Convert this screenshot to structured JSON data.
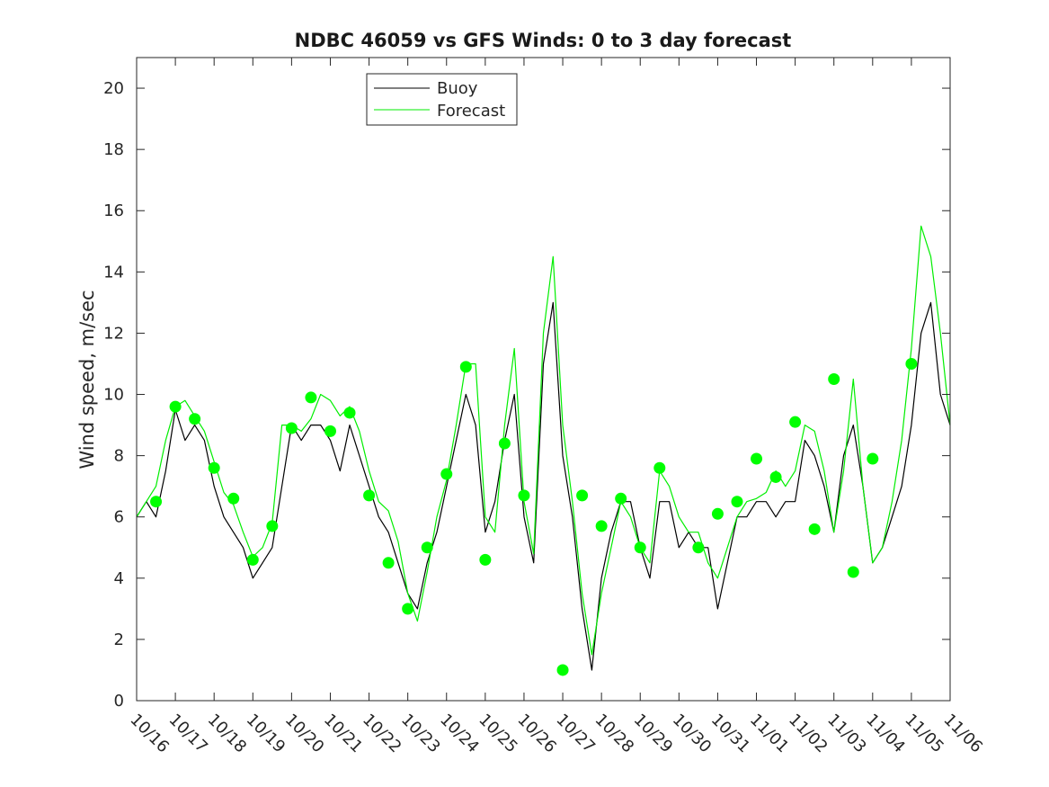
{
  "chart_data": {
    "type": "line",
    "title": "NDBC 46059 vs GFS Winds: 0 to 3 day forecast",
    "xlabel": "",
    "ylabel": "Wind speed, m/sec",
    "ylim": [
      0,
      21
    ],
    "yticks": [
      0,
      2,
      4,
      6,
      8,
      10,
      12,
      14,
      16,
      18,
      20
    ],
    "xlim": [
      0,
      21
    ],
    "x_tick_labels": [
      "10/16",
      "10/17",
      "10/18",
      "10/19",
      "10/20",
      "10/21",
      "10/22",
      "10/23",
      "10/24",
      "10/25",
      "10/26",
      "10/27",
      "10/28",
      "10/29",
      "10/30",
      "10/31",
      "11/01",
      "11/02",
      "11/03",
      "11/04",
      "11/05",
      "11/06"
    ],
    "legend": {
      "position": "top",
      "entries": [
        "Buoy",
        "Forecast"
      ]
    },
    "colors": {
      "buoy": "#000000",
      "forecast": "#00ee00",
      "marker": "#00ff00"
    },
    "series": [
      {
        "name": "Buoy",
        "values": [
          [
            0.0,
            6
          ],
          [
            0.25,
            6.5
          ],
          [
            0.5,
            6
          ],
          [
            0.75,
            7.5
          ],
          [
            1.0,
            9.5
          ],
          [
            1.25,
            8.5
          ],
          [
            1.5,
            9
          ],
          [
            1.75,
            8.5
          ],
          [
            2.0,
            7
          ],
          [
            2.25,
            6
          ],
          [
            2.5,
            5.5
          ],
          [
            2.75,
            5
          ],
          [
            3.0,
            4
          ],
          [
            3.25,
            4.5
          ],
          [
            3.5,
            5
          ],
          [
            3.75,
            7
          ],
          [
            4.0,
            9
          ],
          [
            4.25,
            8.5
          ],
          [
            4.5,
            9
          ],
          [
            4.75,
            9
          ],
          [
            5.0,
            8.5
          ],
          [
            5.25,
            7.5
          ],
          [
            5.5,
            9
          ],
          [
            5.75,
            8
          ],
          [
            6.0,
            7
          ],
          [
            6.25,
            6
          ],
          [
            6.5,
            5.5
          ],
          [
            6.75,
            4.5
          ],
          [
            7.0,
            3.5
          ],
          [
            7.25,
            3
          ],
          [
            7.5,
            4.5
          ],
          [
            7.75,
            5.5
          ],
          [
            8.0,
            7
          ],
          [
            8.25,
            8.5
          ],
          [
            8.5,
            10
          ],
          [
            8.75,
            9
          ],
          [
            9.0,
            5.5
          ],
          [
            9.25,
            6.5
          ],
          [
            9.5,
            8.5
          ],
          [
            9.75,
            10
          ],
          [
            10.0,
            6
          ],
          [
            10.25,
            4.5
          ],
          [
            10.5,
            11
          ],
          [
            10.75,
            13
          ],
          [
            11.0,
            8
          ],
          [
            11.25,
            6
          ],
          [
            11.5,
            3
          ],
          [
            11.75,
            1
          ],
          [
            12.0,
            4
          ],
          [
            12.25,
            5.5
          ],
          [
            12.5,
            6.5
          ],
          [
            12.75,
            6.5
          ],
          [
            13.0,
            5
          ],
          [
            13.25,
            4
          ],
          [
            13.5,
            6.5
          ],
          [
            13.75,
            6.5
          ],
          [
            14.0,
            5
          ],
          [
            14.25,
            5.5
          ],
          [
            14.5,
            5
          ],
          [
            14.75,
            5
          ],
          [
            15.0,
            3
          ],
          [
            15.25,
            4.5
          ],
          [
            15.5,
            6
          ],
          [
            15.75,
            6
          ],
          [
            16.0,
            6.5
          ],
          [
            16.25,
            6.5
          ],
          [
            16.5,
            6
          ],
          [
            16.75,
            6.5
          ],
          [
            17.0,
            6.5
          ],
          [
            17.25,
            8.5
          ],
          [
            17.5,
            8
          ],
          [
            17.75,
            7
          ],
          [
            18.0,
            5.5
          ],
          [
            18.25,
            8
          ],
          [
            18.5,
            9
          ],
          [
            18.75,
            7
          ],
          [
            19.0,
            4.5
          ],
          [
            19.25,
            5
          ],
          [
            19.5,
            6
          ],
          [
            19.75,
            7
          ],
          [
            20.0,
            9
          ],
          [
            20.25,
            12
          ],
          [
            20.5,
            13
          ],
          [
            20.75,
            10
          ],
          [
            21.0,
            9
          ]
        ]
      },
      {
        "name": "Forecast",
        "values": [
          [
            0.0,
            6
          ],
          [
            0.25,
            6.5
          ],
          [
            0.5,
            7
          ],
          [
            0.75,
            8.5
          ],
          [
            1.0,
            9.6
          ],
          [
            1.25,
            9.8
          ],
          [
            1.5,
            9.3
          ],
          [
            1.75,
            8.8
          ],
          [
            2.0,
            7.8
          ],
          [
            2.25,
            6.8
          ],
          [
            2.5,
            6.4
          ],
          [
            2.75,
            5.5
          ],
          [
            3.0,
            4.7
          ],
          [
            3.25,
            5
          ],
          [
            3.5,
            5.8
          ],
          [
            3.75,
            9
          ],
          [
            4.0,
            9
          ],
          [
            4.25,
            8.8
          ],
          [
            4.5,
            9.2
          ],
          [
            4.75,
            10
          ],
          [
            5.0,
            9.8
          ],
          [
            5.25,
            9.3
          ],
          [
            5.5,
            9.6
          ],
          [
            5.75,
            8.8
          ],
          [
            6.0,
            7.5
          ],
          [
            6.25,
            6.5
          ],
          [
            6.5,
            6.2
          ],
          [
            6.75,
            5.2
          ],
          [
            7.0,
            3.5
          ],
          [
            7.25,
            2.6
          ],
          [
            7.5,
            4.2
          ],
          [
            7.75,
            6
          ],
          [
            8.0,
            7.2
          ],
          [
            8.25,
            9
          ],
          [
            8.5,
            11
          ],
          [
            8.75,
            11
          ],
          [
            9.0,
            6
          ],
          [
            9.25,
            5.5
          ],
          [
            9.5,
            9
          ],
          [
            9.75,
            11.5
          ],
          [
            10.0,
            6.5
          ],
          [
            10.25,
            4.8
          ],
          [
            10.5,
            12
          ],
          [
            10.75,
            14.5
          ],
          [
            11.0,
            9
          ],
          [
            11.25,
            6.5
          ],
          [
            11.5,
            3.5
          ],
          [
            11.75,
            1.5
          ],
          [
            12.0,
            3.5
          ],
          [
            12.25,
            5
          ],
          [
            12.5,
            6.5
          ],
          [
            12.75,
            6
          ],
          [
            13.0,
            5
          ],
          [
            13.25,
            4.5
          ],
          [
            13.5,
            7.5
          ],
          [
            13.75,
            7
          ],
          [
            14.0,
            6
          ],
          [
            14.25,
            5.5
          ],
          [
            14.5,
            5.5
          ],
          [
            14.75,
            4.5
          ],
          [
            15.0,
            4
          ],
          [
            15.25,
            5
          ],
          [
            15.5,
            6
          ],
          [
            15.75,
            6.5
          ],
          [
            16.0,
            6.6
          ],
          [
            16.25,
            6.8
          ],
          [
            16.5,
            7.5
          ],
          [
            16.75,
            7
          ],
          [
            17.0,
            7.5
          ],
          [
            17.25,
            9
          ],
          [
            17.5,
            8.8
          ],
          [
            17.75,
            7.5
          ],
          [
            18.0,
            5.5
          ],
          [
            18.25,
            7.5
          ],
          [
            18.5,
            10.5
          ],
          [
            18.75,
            7
          ],
          [
            19.0,
            4.5
          ],
          [
            19.25,
            5
          ],
          [
            19.5,
            6.5
          ],
          [
            19.75,
            8.5
          ],
          [
            20.0,
            11.5
          ],
          [
            20.25,
            15.5
          ],
          [
            20.5,
            14.5
          ],
          [
            20.75,
            12
          ],
          [
            21.0,
            9
          ]
        ]
      }
    ],
    "markers": [
      [
        0.5,
        6.5
      ],
      [
        1.0,
        9.6
      ],
      [
        1.5,
        9.2
      ],
      [
        2.0,
        7.6
      ],
      [
        2.5,
        6.6
      ],
      [
        3.0,
        4.6
      ],
      [
        3.5,
        5.7
      ],
      [
        4.0,
        8.9
      ],
      [
        4.5,
        9.9
      ],
      [
        5.0,
        8.8
      ],
      [
        5.5,
        9.4
      ],
      [
        6.0,
        6.7
      ],
      [
        6.5,
        4.5
      ],
      [
        7.0,
        3.0
      ],
      [
        7.5,
        5.0
      ],
      [
        8.0,
        7.4
      ],
      [
        8.5,
        10.9
      ],
      [
        9.0,
        4.6
      ],
      [
        9.5,
        8.4
      ],
      [
        10.0,
        6.7
      ],
      [
        11.0,
        1.0
      ],
      [
        11.5,
        6.7
      ],
      [
        12.0,
        5.7
      ],
      [
        12.5,
        6.6
      ],
      [
        13.0,
        5.0
      ],
      [
        13.5,
        7.6
      ],
      [
        14.5,
        5.0
      ],
      [
        15.0,
        6.1
      ],
      [
        15.5,
        6.5
      ],
      [
        16.0,
        7.9
      ],
      [
        16.5,
        7.3
      ],
      [
        17.0,
        9.1
      ],
      [
        17.5,
        5.6
      ],
      [
        18.0,
        10.5
      ],
      [
        18.5,
        4.2
      ],
      [
        19.0,
        7.9
      ],
      [
        20.0,
        11.0
      ]
    ]
  }
}
